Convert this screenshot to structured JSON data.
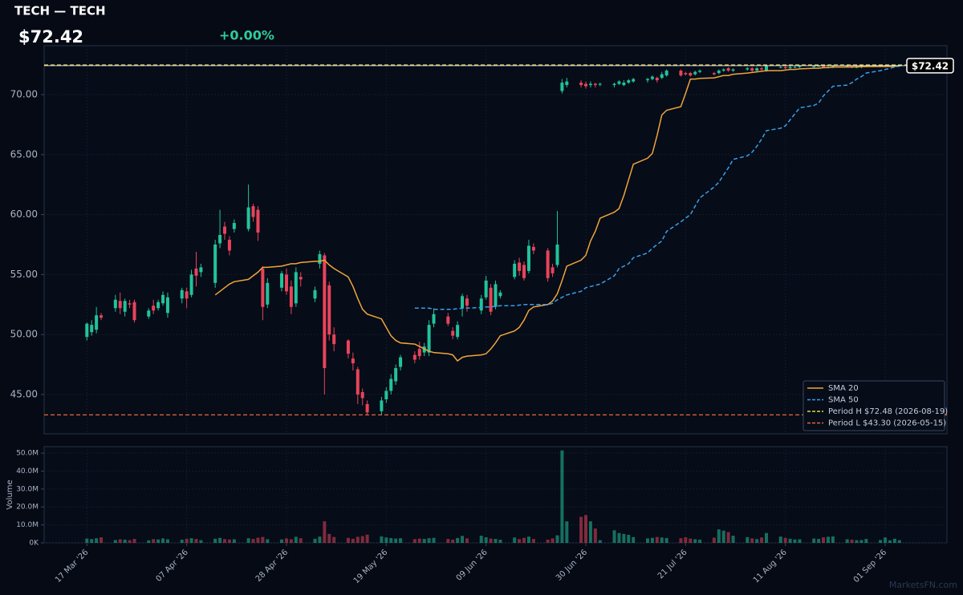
{
  "header": {
    "title": "TECH — TECH",
    "change": {
      "value": 0,
      "label": "+0.00%"
    }
  },
  "chart_data": [
    {
      "type": "candlestick",
      "x": [
        "2026-03-17",
        "2026-03-18",
        "2026-03-19",
        "2026-03-20",
        "2026-03-23",
        "2026-03-24",
        "2026-03-25",
        "2026-03-26",
        "2026-03-27",
        "2026-03-30",
        "2026-03-31",
        "2026-04-01",
        "2026-04-02",
        "2026-04-03",
        "2026-04-06",
        "2026-04-07",
        "2026-04-08",
        "2026-04-09",
        "2026-04-10",
        "2026-04-13",
        "2026-04-14",
        "2026-04-15",
        "2026-04-16",
        "2026-04-17",
        "2026-04-20",
        "2026-04-21",
        "2026-04-22",
        "2026-04-23",
        "2026-04-24",
        "2026-04-27",
        "2026-04-28",
        "2026-04-29",
        "2026-04-30",
        "2026-05-01",
        "2026-05-04",
        "2026-05-05",
        "2026-05-06",
        "2026-05-07",
        "2026-05-08",
        "2026-05-11",
        "2026-05-12",
        "2026-05-13",
        "2026-05-14",
        "2026-05-15",
        "2026-05-18",
        "2026-05-19",
        "2026-05-20",
        "2026-05-21",
        "2026-05-22",
        "2026-05-25",
        "2026-05-26",
        "2026-05-27",
        "2026-05-28",
        "2026-05-29",
        "2026-06-01",
        "2026-06-02",
        "2026-06-03",
        "2026-06-04",
        "2026-06-05",
        "2026-06-08",
        "2026-06-09",
        "2026-06-10",
        "2026-06-11",
        "2026-06-12",
        "2026-06-15",
        "2026-06-16",
        "2026-06-17",
        "2026-06-18",
        "2026-06-19",
        "2026-06-22",
        "2026-06-23",
        "2026-06-24",
        "2026-06-25",
        "2026-06-26",
        "2026-06-29",
        "2026-06-30",
        "2026-07-01",
        "2026-07-02",
        "2026-07-03",
        "2026-07-06",
        "2026-07-07",
        "2026-07-08",
        "2026-07-09",
        "2026-07-10",
        "2026-07-13",
        "2026-07-14",
        "2026-07-15",
        "2026-07-16",
        "2026-07-17",
        "2026-07-20",
        "2026-07-21",
        "2026-07-22",
        "2026-07-23",
        "2026-07-24",
        "2026-07-27",
        "2026-07-28",
        "2026-07-29",
        "2026-07-30",
        "2026-07-31",
        "2026-08-03",
        "2026-08-04",
        "2026-08-05",
        "2026-08-06",
        "2026-08-07",
        "2026-08-10",
        "2026-08-11",
        "2026-08-12",
        "2026-08-13",
        "2026-08-14",
        "2026-08-17",
        "2026-08-18",
        "2026-08-19",
        "2026-08-20",
        "2026-08-21",
        "2026-08-24",
        "2026-08-25",
        "2026-08-26",
        "2026-08-27",
        "2026-08-28",
        "2026-08-31",
        "2026-09-01",
        "2026-09-02",
        "2026-09-03",
        "2026-09-04"
      ],
      "open": [
        49.8,
        50.2,
        50.4,
        51.6,
        52.2,
        52.8,
        51.9,
        52.6,
        52.7,
        51.5,
        52.4,
        52.2,
        52.6,
        51.8,
        53.0,
        53.6,
        53.3,
        55.5,
        55.2,
        54.3,
        57.6,
        59.0,
        57.9,
        58.8,
        58.8,
        60.7,
        60.4,
        55.5,
        52.5,
        53.9,
        55.0,
        54.0,
        52.6,
        54.8,
        53.0,
        55.9,
        56.6,
        54.1,
        50.0,
        49.5,
        48.0,
        47.1,
        45.2,
        44.2,
        43.6,
        44.6,
        45.3,
        46.1,
        47.3,
        48.3,
        48.8,
        48.5,
        48.5,
        50.9,
        51.5,
        50.3,
        49.8,
        52.2,
        53.0,
        52.0,
        53.1,
        53.9,
        52.3,
        53.2,
        54.8,
        56.0,
        55.8,
        55.3,
        57.3,
        57.0,
        55.6,
        55.8,
        70.3,
        70.8,
        71.0,
        70.9,
        70.8,
        70.9,
        70.9,
        70.8,
        70.9,
        70.8,
        71.0,
        71.1,
        71.2,
        71.3,
        71.4,
        71.4,
        71.6,
        72.0,
        71.8,
        71.8,
        71.7,
        71.9,
        71.8,
        71.8,
        72.0,
        72.2,
        72.0,
        72.1,
        72.2,
        72.0,
        72.2,
        72.0,
        72.3,
        72.3,
        72.2,
        72.3,
        72.3,
        72.3,
        72.4,
        72.4,
        72.3,
        72.3,
        72.4,
        72.4,
        72.3,
        72.3,
        72.4,
        72.4,
        72.4,
        72.4,
        72.4,
        72.4
      ],
      "high": [
        51.0,
        51.2,
        52.3,
        51.8,
        53.3,
        53.5,
        53.0,
        52.9,
        52.9,
        52.2,
        52.9,
        52.9,
        53.6,
        53.5,
        53.9,
        53.9,
        55.4,
        56.9,
        55.9,
        57.9,
        60.4,
        59.4,
        58.2,
        59.6,
        62.5,
        60.9,
        60.7,
        55.7,
        54.7,
        55.3,
        55.5,
        54.5,
        55.6,
        55.2,
        54.0,
        57.0,
        56.8,
        54.4,
        50.6,
        49.6,
        48.5,
        47.3,
        45.5,
        44.5,
        44.8,
        45.6,
        46.7,
        47.5,
        48.3,
        48.6,
        49.4,
        49.3,
        51.2,
        52.2,
        51.8,
        50.6,
        51.1,
        53.4,
        53.3,
        53.3,
        54.9,
        54.2,
        54.5,
        53.7,
        56.2,
        56.4,
        56.1,
        57.9,
        57.6,
        57.2,
        55.9,
        60.3,
        71.3,
        71.4,
        71.2,
        71.1,
        71.1,
        71.0,
        71.0,
        71.0,
        71.2,
        71.2,
        71.3,
        71.4,
        71.4,
        71.6,
        71.5,
        71.9,
        72.1,
        72.1,
        71.9,
        71.9,
        72.0,
        72.1,
        71.9,
        72.1,
        72.2,
        72.3,
        72.2,
        72.3,
        72.3,
        72.3,
        72.3,
        72.4,
        72.4,
        72.4,
        72.4,
        72.4,
        72.45,
        72.45,
        72.46,
        72.48,
        72.4,
        72.45,
        72.45,
        72.45,
        72.4,
        72.45,
        72.45,
        72.45,
        72.45,
        72.45,
        72.45,
        72.46
      ],
      "low": [
        49.5,
        49.9,
        50.1,
        51.2,
        51.9,
        51.7,
        51.5,
        52.2,
        51.0,
        51.3,
        51.7,
        52.0,
        52.4,
        51.4,
        52.6,
        52.2,
        53.1,
        54.0,
        54.8,
        53.9,
        57.2,
        57.9,
        56.6,
        58.5,
        58.6,
        59.4,
        57.8,
        51.2,
        52.2,
        53.6,
        53.3,
        51.7,
        52.3,
        54.0,
        52.7,
        55.5,
        45.0,
        49.5,
        48.6,
        48.0,
        47.0,
        44.2,
        44.1,
        43.3,
        43.3,
        44.3,
        45.0,
        45.8,
        47.0,
        47.6,
        47.9,
        48.2,
        48.2,
        50.6,
        50.7,
        49.6,
        49.6,
        51.5,
        51.9,
        51.7,
        52.9,
        51.6,
        52.1,
        53.0,
        54.6,
        54.9,
        54.5,
        55.1,
        56.7,
        54.4,
        54.8,
        55.6,
        70.1,
        70.6,
        70.6,
        70.5,
        70.6,
        70.6,
        70.7,
        70.6,
        70.8,
        70.7,
        70.9,
        71.0,
        71.0,
        71.2,
        71.0,
        71.3,
        71.5,
        71.5,
        71.6,
        71.5,
        71.6,
        71.8,
        71.6,
        71.7,
        71.9,
        71.9,
        71.9,
        72.0,
        71.9,
        71.9,
        72.0,
        71.9,
        72.2,
        72.1,
        72.1,
        72.2,
        72.2,
        72.2,
        72.3,
        72.2,
        72.2,
        72.2,
        72.3,
        72.2,
        72.2,
        72.2,
        72.3,
        72.3,
        72.3,
        72.3,
        72.35,
        72.35
      ],
      "close": [
        50.9,
        50.8,
        51.6,
        51.4,
        52.9,
        52.2,
        52.8,
        52.5,
        51.2,
        52.0,
        52.0,
        52.7,
        53.3,
        53.1,
        53.7,
        53.0,
        55.0,
        54.9,
        55.6,
        57.5,
        58.3,
        58.4,
        57.0,
        59.3,
        60.6,
        59.8,
        58.5,
        52.3,
        54.3,
        55.1,
        53.6,
        52.3,
        55.2,
        54.6,
        53.7,
        56.7,
        47.2,
        50.0,
        49.2,
        48.4,
        47.6,
        45.0,
        44.7,
        43.5,
        44.5,
        45.3,
        46.3,
        47.2,
        48.1,
        47.9,
        48.2,
        49.0,
        50.8,
        51.7,
        50.9,
        49.9,
        50.8,
        53.2,
        52.4,
        53.0,
        54.5,
        51.9,
        54.2,
        53.5,
        55.9,
        55.3,
        54.7,
        57.4,
        57.0,
        54.7,
        55.1,
        57.5,
        71.0,
        71.1,
        70.8,
        70.7,
        70.9,
        70.8,
        70.9,
        70.9,
        71.1,
        71.0,
        71.2,
        71.3,
        71.3,
        71.5,
        71.2,
        71.7,
        72.0,
        71.6,
        71.7,
        71.6,
        71.9,
        72.0,
        71.7,
        72.0,
        72.1,
        72.0,
        72.1,
        72.2,
        72.0,
        72.2,
        72.1,
        72.4,
        72.3,
        72.2,
        72.3,
        72.3,
        72.4,
        72.4,
        72.4,
        72.3,
        72.3,
        72.4,
        72.4,
        72.3,
        72.3,
        72.4,
        72.4,
        72.4,
        72.4,
        72.4,
        72.4,
        72.42
      ],
      "up_color": "#22c39b",
      "down_color": "#e8445a",
      "xlim": [
        "2026-03-08",
        "2026-09-14"
      ],
      "xticks": [
        {
          "value": "2026-03-17",
          "label": "17 Mar '26"
        },
        {
          "value": "2026-04-07",
          "label": "07 Apr '26"
        },
        {
          "value": "2026-04-28",
          "label": "28 Apr '26"
        },
        {
          "value": "2026-05-19",
          "label": "19 May '26"
        },
        {
          "value": "2026-06-09",
          "label": "09 Jun '26"
        },
        {
          "value": "2026-06-30",
          "label": "30 Jun '26"
        },
        {
          "value": "2026-07-21",
          "label": "21 Jul '26"
        },
        {
          "value": "2026-08-11",
          "label": "11 Aug '26"
        },
        {
          "value": "2026-09-01",
          "label": "01 Sep '26"
        }
      ],
      "ylim": [
        41.72,
        74.08
      ],
      "yticks": [
        {
          "value": 45,
          "label": "45.00"
        },
        {
          "value": 50,
          "label": "50.00"
        },
        {
          "value": 55,
          "label": "55.00"
        },
        {
          "value": 60,
          "label": "60.00"
        },
        {
          "value": 65,
          "label": "65.00"
        },
        {
          "value": 70,
          "label": "70.00"
        }
      ],
      "grid": true,
      "series": [
        {
          "name": "SMA 20",
          "color": "#f0a43a",
          "dashed": false,
          "values": [
            null,
            null,
            null,
            null,
            null,
            null,
            null,
            null,
            null,
            null,
            null,
            null,
            null,
            null,
            null,
            null,
            null,
            null,
            null,
            53.3,
            53.6,
            53.9,
            54.2,
            54.4,
            54.6,
            54.9,
            55.2,
            55.6,
            55.6,
            55.7,
            55.8,
            55.9,
            55.9,
            56.0,
            56.1,
            56.1,
            56.2,
            55.8,
            55.5,
            54.8,
            54.0,
            53.0,
            52.1,
            51.7,
            51.3,
            50.6,
            49.9,
            49.5,
            49.3,
            49.2,
            49.0,
            48.8,
            48.6,
            48.5,
            48.4,
            48.3,
            47.8,
            48.1,
            48.2,
            48.3,
            48.4,
            48.8,
            49.3,
            49.9,
            50.3,
            50.6,
            51.2,
            52.0,
            52.3,
            52.5,
            52.8,
            53.4,
            54.5,
            55.7,
            56.2,
            56.6,
            57.8,
            58.6,
            59.7,
            60.2,
            60.5,
            61.6,
            62.9,
            64.2,
            64.7,
            65.1,
            66.6,
            68.3,
            68.7,
            69.0,
            70.1,
            71.3,
            71.3,
            71.35,
            71.4,
            71.5,
            71.6,
            71.6,
            71.7,
            71.8,
            71.85,
            71.9,
            71.95,
            72.0,
            72.0,
            72.05,
            72.1,
            72.1,
            72.15,
            72.2,
            72.2,
            72.25,
            72.25,
            72.3,
            72.3,
            72.3,
            72.32,
            72.33,
            72.34,
            72.35,
            72.35,
            72.36,
            72.37,
            72.38
          ]
        },
        {
          "name": "SMA 50",
          "color": "#3a9ee8",
          "dashed": true,
          "values": [
            null,
            null,
            null,
            null,
            null,
            null,
            null,
            null,
            null,
            null,
            null,
            null,
            null,
            null,
            null,
            null,
            null,
            null,
            null,
            null,
            null,
            null,
            null,
            null,
            null,
            null,
            null,
            null,
            null,
            null,
            null,
            null,
            null,
            null,
            null,
            null,
            null,
            null,
            null,
            null,
            null,
            null,
            null,
            null,
            null,
            null,
            null,
            null,
            null,
            52.2,
            52.2,
            52.2,
            52.2,
            52.1,
            52.1,
            52.1,
            52.15,
            52.2,
            52.2,
            52.25,
            52.3,
            52.3,
            52.35,
            52.4,
            52.4,
            52.45,
            52.5,
            52.5,
            52.5,
            52.5,
            52.6,
            52.9,
            53.1,
            53.3,
            53.6,
            53.9,
            54.0,
            54.1,
            54.2,
            54.9,
            55.5,
            55.7,
            55.9,
            56.4,
            56.8,
            57.2,
            57.5,
            57.8,
            58.6,
            59.4,
            59.7,
            60.0,
            60.7,
            61.4,
            62.3,
            62.7,
            63.3,
            63.9,
            64.6,
            64.9,
            65.2,
            65.7,
            66.3,
            67.0,
            67.2,
            67.4,
            67.9,
            68.4,
            68.9,
            69.1,
            69.3,
            69.9,
            70.3,
            70.7,
            70.8,
            71.0,
            71.3,
            71.5,
            71.8,
            72.0,
            72.1,
            72.2,
            72.3,
            72.38
          ]
        }
      ],
      "reference_lines": [
        {
          "name": "Period H $72.48 (2026-08-19)",
          "value": 72.48,
          "color": "#e8d44a"
        },
        {
          "name": "Period L $43.30 (2026-05-15)",
          "value": 43.3,
          "color": "#e8683a"
        }
      ],
      "last_price": {
        "value": 72.42,
        "label": "$72.42",
        "color": "#ffffff"
      },
      "legend": "lower right"
    },
    {
      "type": "bar",
      "ylabel": "Volume",
      "values": [
        2.4,
        2.1,
        2.6,
        3.1,
        1.6,
        2.0,
        1.8,
        1.5,
        2.2,
        1.4,
        2.1,
        1.9,
        2.5,
        2.0,
        1.8,
        2.3,
        2.6,
        2.2,
        1.5,
        2.3,
        2.8,
        2.1,
        1.9,
        2.0,
        2.6,
        2.2,
        2.9,
        3.3,
        2.0,
        1.9,
        2.5,
        2.0,
        3.4,
        2.6,
        2.3,
        3.5,
        12.0,
        5.0,
        3.3,
        2.8,
        2.3,
        3.4,
        3.8,
        4.6,
        3.6,
        3.0,
        2.7,
        2.4,
        2.6,
        2.1,
        2.4,
        2.2,
        2.6,
        2.8,
        2.2,
        1.8,
        2.7,
        3.9,
        2.5,
        4.0,
        3.1,
        2.4,
        2.2,
        1.8,
        3.0,
        2.1,
        2.8,
        3.5,
        2.2,
        1.8,
        2.5,
        4.2,
        51.5,
        12.0,
        14.5,
        15.5,
        12.0,
        8.0,
        1.5,
        7.0,
        5.5,
        5.0,
        4.5,
        3.2,
        2.5,
        2.8,
        3.3,
        3.0,
        2.7,
        2.6,
        3.1,
        2.4,
        2.0,
        1.8,
        2.9,
        7.5,
        6.8,
        6.0,
        4.0,
        3.2,
        2.5,
        2.1,
        3.0,
        5.5,
        3.5,
        2.8,
        2.3,
        1.9,
        2.0,
        2.4,
        2.2,
        3.1,
        3.4,
        3.6,
        2.0,
        1.8,
        1.5,
        1.6,
        2.2,
        1.6,
        3.0,
        1.4,
        2.3,
        1.5
      ],
      "ylim": [
        0,
        53.6
      ],
      "yticks": [
        {
          "value": 0,
          "label": "0K"
        },
        {
          "value": 10,
          "label": "10.0M"
        },
        {
          "value": 20,
          "label": "20.0M"
        },
        {
          "value": 30,
          "label": "30.0M"
        },
        {
          "value": 40,
          "label": "40.0M"
        },
        {
          "value": 50,
          "label": "50.0M"
        }
      ],
      "grid": true
    }
  ],
  "watermark": "MarketsFN.com"
}
